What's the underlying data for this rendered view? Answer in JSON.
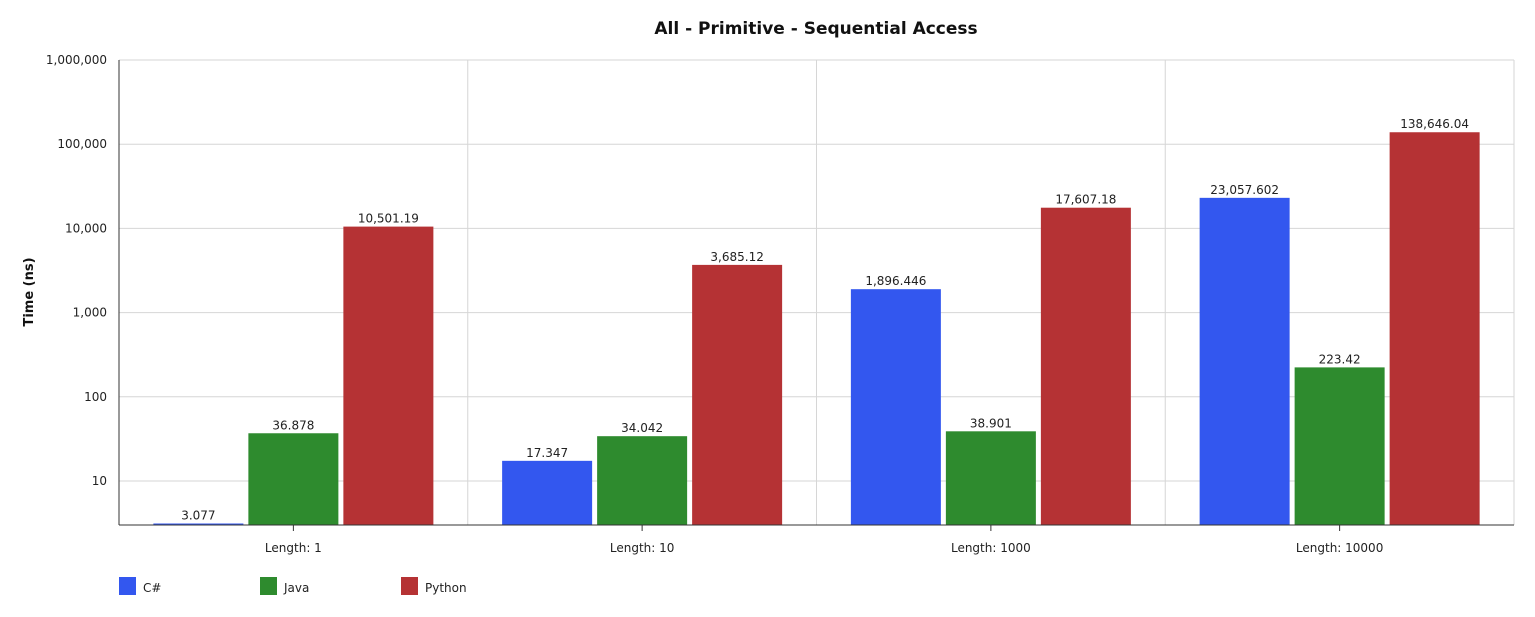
{
  "chart_data": {
    "type": "bar",
    "title": "All - Primitive - Sequential Access",
    "ylabel": "Time (ns)",
    "xlabel": "",
    "yscale": "log",
    "ylim": [
      3,
      1000000
    ],
    "yticks": [
      10,
      100,
      1000,
      10000,
      100000,
      1000000
    ],
    "ytick_labels": [
      "10",
      "100",
      "1,000",
      "10,000",
      "100,000",
      "1,000,000"
    ],
    "grid": true,
    "legend": "bottom-left",
    "categories": [
      "Length: 1",
      "Length: 10",
      "Length: 1000",
      "Length: 10000"
    ],
    "series": [
      {
        "name": "C#",
        "color": "#3357ef",
        "values": [
          3.077,
          17.347,
          1896.446,
          23057.602
        ],
        "labels": [
          "3.077",
          "17.347",
          "1,896.446",
          "23,057.602"
        ]
      },
      {
        "name": "Java",
        "color": "#2e8b2e",
        "values": [
          36.878,
          34.042,
          38.901,
          223.42
        ],
        "labels": [
          "36.878",
          "34.042",
          "38.901",
          "223.42"
        ]
      },
      {
        "name": "Python",
        "color": "#b53234",
        "values": [
          10501.19,
          3685.12,
          17607.18,
          138646.04
        ],
        "labels": [
          "10,501.19",
          "3,685.12",
          "17,607.18",
          "138,646.04"
        ]
      }
    ]
  }
}
